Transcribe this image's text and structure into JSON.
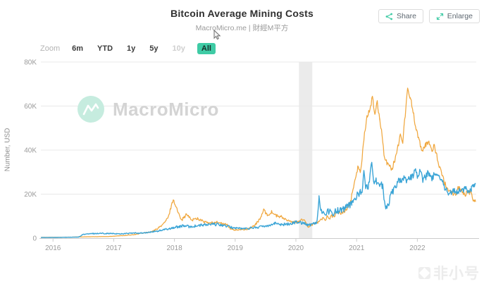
{
  "header": {
    "title": "Bitcoin Average Mining Costs",
    "subtitle": "MacroMicro.me | 財經M平方"
  },
  "actions": {
    "share": "Share",
    "enlarge": "Enlarge"
  },
  "toolbar": {
    "zoom_label": "Zoom",
    "ranges": [
      {
        "label": "6m",
        "state": "normal"
      },
      {
        "label": "YTD",
        "state": "normal"
      },
      {
        "label": "1y",
        "state": "normal"
      },
      {
        "label": "5y",
        "state": "normal"
      },
      {
        "label": "10y",
        "state": "disabled"
      },
      {
        "label": "All",
        "state": "active"
      }
    ]
  },
  "watermark": {
    "brand": "MacroMicro"
  },
  "corner_watermark": {
    "text": "非小号"
  },
  "colors": {
    "accent_teal": "#3FCBA5",
    "orange_line": "#F0A73E",
    "blue_line": "#3AA4D6",
    "grid": "#e8e8e8",
    "axis": "#cccccc",
    "plot_band": "#ebebeb",
    "tick_text": "#9b9b9b"
  },
  "chart_data": {
    "type": "line",
    "title": "Bitcoin Average Mining Costs",
    "ylabel": "Number, USD",
    "xlim": [
      2015.8,
      2022.97
    ],
    "ylim": [
      0,
      80000
    ],
    "grid": "horizontal",
    "legend": "none",
    "y_ticks": [
      {
        "value": 0,
        "label": "0"
      },
      {
        "value": 20000,
        "label": "20K"
      },
      {
        "value": 40000,
        "label": "40K"
      },
      {
        "value": 60000,
        "label": "60K"
      },
      {
        "value": 80000,
        "label": "80K"
      }
    ],
    "x_ticks": [
      {
        "value": 2016,
        "label": "2016"
      },
      {
        "value": 2017,
        "label": "2017"
      },
      {
        "value": 2018,
        "label": "2018"
      },
      {
        "value": 2019,
        "label": "2019"
      },
      {
        "value": 2020,
        "label": "2020"
      },
      {
        "value": 2021,
        "label": "2021"
      },
      {
        "value": 2022,
        "label": "2022"
      }
    ],
    "plot_band": {
      "from": 2020.05,
      "to": 2020.27
    },
    "series": [
      {
        "name": "orange-series",
        "color": "#F0A73E",
        "jitter": 700,
        "points": [
          [
            2015.8,
            350
          ],
          [
            2016.0,
            430
          ],
          [
            2016.3,
            460
          ],
          [
            2016.6,
            640
          ],
          [
            2016.9,
            730
          ],
          [
            2017.05,
            1000
          ],
          [
            2017.2,
            1250
          ],
          [
            2017.35,
            1700
          ],
          [
            2017.5,
            2400
          ],
          [
            2017.62,
            2800
          ],
          [
            2017.72,
            4300
          ],
          [
            2017.82,
            6500
          ],
          [
            2017.9,
            9500
          ],
          [
            2017.95,
            15000
          ],
          [
            2017.98,
            17500
          ],
          [
            2018.03,
            14000
          ],
          [
            2018.08,
            10200
          ],
          [
            2018.13,
            8600
          ],
          [
            2018.2,
            10800
          ],
          [
            2018.28,
            8300
          ],
          [
            2018.38,
            9000
          ],
          [
            2018.48,
            7500
          ],
          [
            2018.58,
            6700
          ],
          [
            2018.68,
            7300
          ],
          [
            2018.78,
            6600
          ],
          [
            2018.86,
            6300
          ],
          [
            2018.92,
            4200
          ],
          [
            2019.0,
            3700
          ],
          [
            2019.1,
            3800
          ],
          [
            2019.2,
            4100
          ],
          [
            2019.3,
            5300
          ],
          [
            2019.4,
            8300
          ],
          [
            2019.47,
            12600
          ],
          [
            2019.54,
            10400
          ],
          [
            2019.6,
            11900
          ],
          [
            2019.68,
            10100
          ],
          [
            2019.76,
            9600
          ],
          [
            2019.85,
            8100
          ],
          [
            2019.95,
            7000
          ],
          [
            2020.05,
            7600
          ],
          [
            2020.12,
            8600
          ],
          [
            2020.2,
            5200
          ],
          [
            2020.28,
            6300
          ],
          [
            2020.36,
            7200
          ],
          [
            2020.45,
            9100
          ],
          [
            2020.55,
            9300
          ],
          [
            2020.65,
            10900
          ],
          [
            2020.75,
            11600
          ],
          [
            2020.83,
            13300
          ],
          [
            2020.9,
            16500
          ],
          [
            2020.97,
            26000
          ],
          [
            2021.02,
            32500
          ],
          [
            2021.07,
            30500
          ],
          [
            2021.12,
            45000
          ],
          [
            2021.17,
            55500
          ],
          [
            2021.22,
            58500
          ],
          [
            2021.26,
            64000
          ],
          [
            2021.3,
            56500
          ],
          [
            2021.34,
            62000
          ],
          [
            2021.38,
            54000
          ],
          [
            2021.42,
            47000
          ],
          [
            2021.46,
            36000
          ],
          [
            2021.52,
            33500
          ],
          [
            2021.58,
            31500
          ],
          [
            2021.63,
            35500
          ],
          [
            2021.68,
            41500
          ],
          [
            2021.72,
            47500
          ],
          [
            2021.76,
            44000
          ],
          [
            2021.8,
            56000
          ],
          [
            2021.84,
            68000
          ],
          [
            2021.88,
            64500
          ],
          [
            2021.93,
            57500
          ],
          [
            2021.98,
            49500
          ],
          [
            2022.03,
            44500
          ],
          [
            2022.08,
            39000
          ],
          [
            2022.14,
            42500
          ],
          [
            2022.19,
            43500
          ],
          [
            2022.24,
            40000
          ],
          [
            2022.28,
            42000
          ],
          [
            2022.32,
            37500
          ],
          [
            2022.36,
            32500
          ],
          [
            2022.4,
            29500
          ],
          [
            2022.44,
            26000
          ],
          [
            2022.48,
            23000
          ],
          [
            2022.53,
            22000
          ],
          [
            2022.58,
            20500
          ],
          [
            2022.63,
            20500
          ],
          [
            2022.68,
            23000
          ],
          [
            2022.73,
            21500
          ],
          [
            2022.78,
            20000
          ],
          [
            2022.83,
            20500
          ],
          [
            2022.87,
            21000
          ],
          [
            2022.9,
            19500
          ],
          [
            2022.93,
            16800
          ],
          [
            2022.96,
            16500
          ]
        ]
      },
      {
        "name": "blue-series",
        "color": "#3AA4D6",
        "jitter": 1000,
        "points": [
          [
            2015.8,
            280
          ],
          [
            2016.1,
            350
          ],
          [
            2016.42,
            480
          ],
          [
            2016.5,
            1750
          ],
          [
            2016.65,
            2050
          ],
          [
            2016.8,
            2200
          ],
          [
            2016.95,
            2100
          ],
          [
            2017.1,
            1950
          ],
          [
            2017.3,
            2250
          ],
          [
            2017.5,
            2350
          ],
          [
            2017.65,
            2900
          ],
          [
            2017.8,
            3600
          ],
          [
            2017.95,
            4600
          ],
          [
            2018.05,
            5100
          ],
          [
            2018.15,
            5600
          ],
          [
            2018.25,
            5200
          ],
          [
            2018.35,
            5500
          ],
          [
            2018.45,
            5900
          ],
          [
            2018.55,
            6100
          ],
          [
            2018.65,
            6300
          ],
          [
            2018.75,
            6100
          ],
          [
            2018.85,
            5500
          ],
          [
            2018.95,
            4800
          ],
          [
            2019.05,
            4500
          ],
          [
            2019.15,
            4300
          ],
          [
            2019.25,
            4600
          ],
          [
            2019.35,
            4900
          ],
          [
            2019.45,
            5300
          ],
          [
            2019.55,
            5900
          ],
          [
            2019.65,
            6700
          ],
          [
            2019.75,
            6400
          ],
          [
            2019.85,
            6200
          ],
          [
            2019.95,
            7000
          ],
          [
            2020.05,
            7400
          ],
          [
            2020.14,
            6800
          ],
          [
            2020.21,
            5900
          ],
          [
            2020.28,
            6500
          ],
          [
            2020.35,
            7600
          ],
          [
            2020.38,
            18800
          ],
          [
            2020.41,
            12400
          ],
          [
            2020.48,
            11600
          ],
          [
            2020.55,
            12200
          ],
          [
            2020.62,
            11700
          ],
          [
            2020.7,
            12600
          ],
          [
            2020.78,
            13100
          ],
          [
            2020.85,
            14300
          ],
          [
            2020.92,
            15800
          ],
          [
            2020.98,
            18500
          ],
          [
            2021.04,
            20500
          ],
          [
            2021.09,
            21500
          ],
          [
            2021.12,
            29500
          ],
          [
            2021.15,
            23000
          ],
          [
            2021.2,
            24000
          ],
          [
            2021.25,
            36000
          ],
          [
            2021.28,
            25500
          ],
          [
            2021.33,
            26000
          ],
          [
            2021.38,
            25000
          ],
          [
            2021.43,
            23500
          ],
          [
            2021.47,
            13800
          ],
          [
            2021.52,
            15500
          ],
          [
            2021.58,
            20500
          ],
          [
            2021.64,
            23500
          ],
          [
            2021.7,
            26500
          ],
          [
            2021.76,
            27000
          ],
          [
            2021.82,
            26500
          ],
          [
            2021.88,
            27500
          ],
          [
            2021.93,
            28000
          ],
          [
            2021.97,
            32500
          ],
          [
            2022.0,
            27500
          ],
          [
            2022.05,
            31500
          ],
          [
            2022.09,
            26500
          ],
          [
            2022.14,
            28000
          ],
          [
            2022.18,
            30500
          ],
          [
            2022.22,
            27000
          ],
          [
            2022.27,
            28500
          ],
          [
            2022.32,
            27500
          ],
          [
            2022.36,
            28000
          ],
          [
            2022.41,
            26500
          ],
          [
            2022.45,
            22000
          ],
          [
            2022.5,
            21000
          ],
          [
            2022.55,
            20500
          ],
          [
            2022.6,
            21500
          ],
          [
            2022.65,
            21000
          ],
          [
            2022.7,
            22000
          ],
          [
            2022.75,
            21000
          ],
          [
            2022.8,
            22500
          ],
          [
            2022.85,
            21500
          ],
          [
            2022.89,
            22000
          ],
          [
            2022.93,
            24000
          ],
          [
            2022.96,
            24500
          ]
        ]
      }
    ]
  }
}
